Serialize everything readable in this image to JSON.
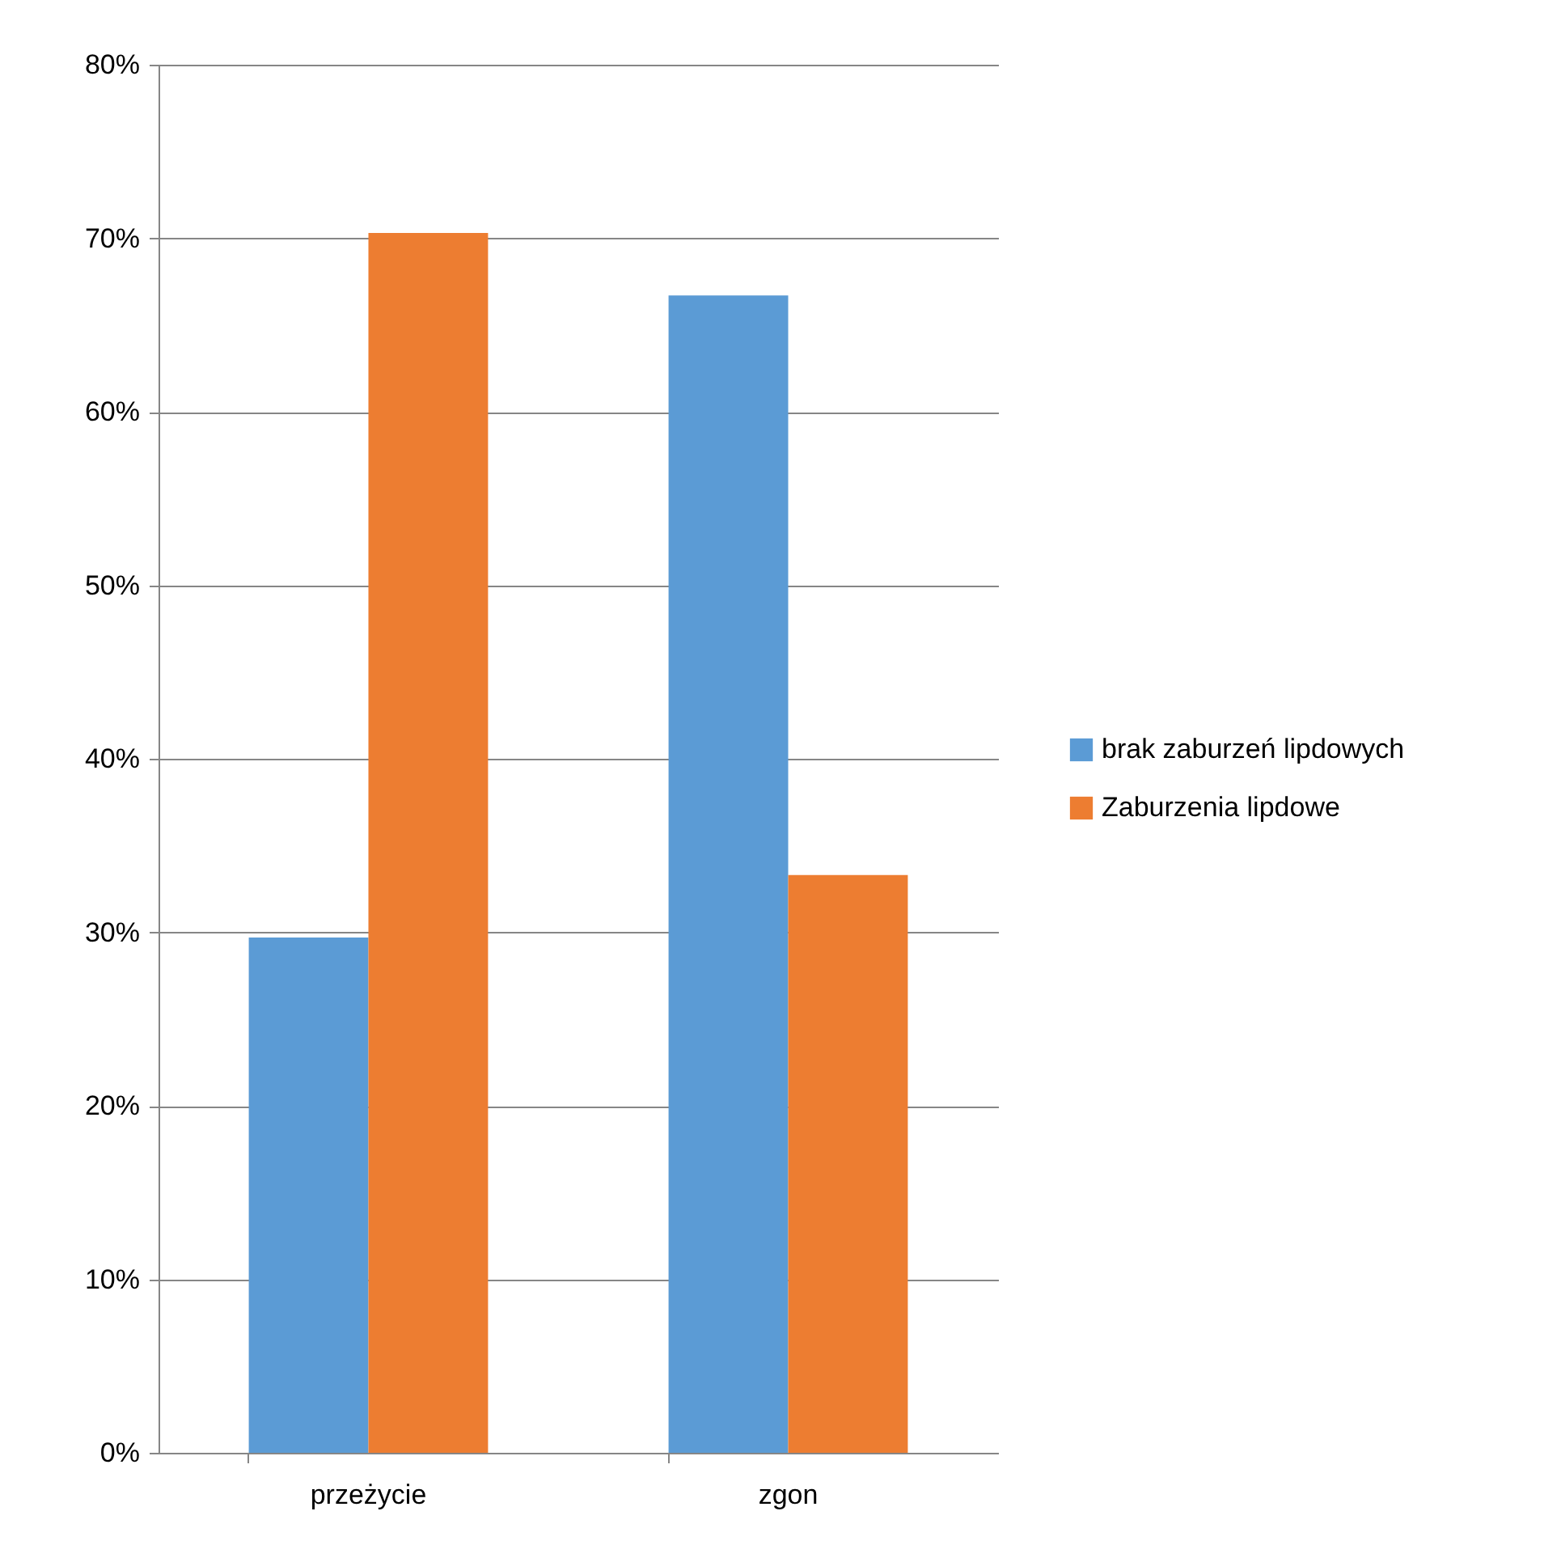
{
  "chart_data": {
    "type": "bar",
    "categories": [
      "przeżycie",
      "zgon"
    ],
    "series": [
      {
        "name": "brak zaburzeń lipdowych",
        "color": "#5b9bd5",
        "values": [
          29.7,
          66.7
        ]
      },
      {
        "name": "Zaburzenia lipdowe",
        "color": "#ed7d31",
        "values": [
          70.3,
          33.3
        ]
      }
    ],
    "ylim": [
      0,
      80
    ],
    "yticks": [
      {
        "value": 0,
        "label": "0%"
      },
      {
        "value": 10,
        "label": "10%"
      },
      {
        "value": 20,
        "label": "20%"
      },
      {
        "value": 30,
        "label": "30%"
      },
      {
        "value": 40,
        "label": "40%"
      },
      {
        "value": 50,
        "label": "50%"
      },
      {
        "value": 60,
        "label": "60%"
      },
      {
        "value": 70,
        "label": "70%"
      },
      {
        "value": 80,
        "label": "80%"
      }
    ],
    "grid": "y",
    "legend": "right"
  }
}
